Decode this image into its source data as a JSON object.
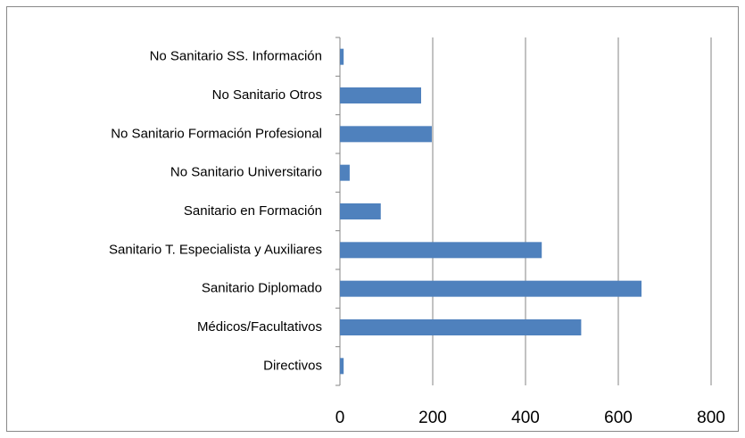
{
  "chart_data": {
    "type": "bar",
    "orientation": "horizontal",
    "categories": [
      "Directivos",
      "Médicos/Facultativos",
      "Sanitario Diplomado",
      "Sanitario T. Especialista y Auxiliares",
      "Sanitario en Formación",
      "No Sanitario Universitario",
      "No Sanitario Formación Profesional",
      "No Sanitario Otros",
      "No Sanitario SS. Información"
    ],
    "values": [
      8,
      520,
      650,
      435,
      88,
      21,
      198,
      175,
      8
    ],
    "color": "#4f81bd",
    "xlim": [
      0,
      800
    ],
    "xticks": [
      0,
      200,
      400,
      600,
      800
    ],
    "grid": true
  }
}
